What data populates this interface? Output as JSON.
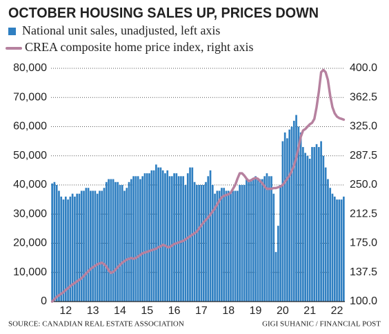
{
  "chart_data": {
    "type": "bar_line",
    "title": "OCTOBER HOUSING SALES UP,  PRICES DOWN",
    "source": "SOURCE: CANADIAN REAL ESTATE ASSOCIATION",
    "credit": "GIGI SUHANIC / FINANCIAL POST",
    "categories": [
      null,
      null,
      null,
      null,
      null,
      null,
      "12",
      null,
      null,
      null,
      null,
      null,
      null,
      null,
      null,
      null,
      null,
      null,
      "13",
      null,
      null,
      null,
      null,
      null,
      null,
      null,
      null,
      null,
      null,
      null,
      "14",
      null,
      null,
      null,
      null,
      null,
      null,
      null,
      null,
      null,
      null,
      null,
      "15",
      null,
      null,
      null,
      null,
      null,
      null,
      null,
      null,
      null,
      null,
      null,
      "16",
      null,
      null,
      null,
      null,
      null,
      null,
      null,
      null,
      null,
      null,
      null,
      "17",
      null,
      null,
      null,
      null,
      null,
      null,
      null,
      null,
      null,
      null,
      null,
      "18",
      null,
      null,
      null,
      null,
      null,
      null,
      null,
      null,
      null,
      null,
      null,
      "19",
      null,
      null,
      null,
      null,
      null,
      null,
      null,
      null,
      null,
      null,
      null,
      "20",
      null,
      null,
      null,
      null,
      null,
      null,
      null,
      null,
      null,
      null,
      null,
      "21",
      null,
      null,
      null,
      null,
      null,
      null,
      null,
      null,
      null,
      null,
      null,
      "22",
      null,
      null,
      null
    ],
    "series": [
      {
        "name": "National unit sales, unadjusted, left axis",
        "color": "#2f7fc1",
        "values": [
          40500,
          41000,
          40000,
          38000,
          36000,
          35000,
          36000,
          35000,
          36000,
          37000,
          36000,
          37000,
          37000,
          38000,
          38000,
          39000,
          39000,
          38000,
          38000,
          38000,
          37000,
          38000,
          38000,
          39000,
          41000,
          42000,
          42000,
          42000,
          41000,
          41000,
          40000,
          40000,
          38000,
          39000,
          41000,
          42000,
          43000,
          43000,
          43000,
          42000,
          43000,
          44000,
          44000,
          44000,
          45000,
          45000,
          47000,
          46000,
          46000,
          45000,
          44000,
          45000,
          43000,
          43000,
          44000,
          44000,
          43000,
          43000,
          43000,
          40000,
          44000,
          46000,
          46000,
          41000,
          40000,
          40000,
          40000,
          40000,
          41000,
          43000,
          45000,
          40000,
          37000,
          38000,
          38000,
          39000,
          39000,
          38000,
          38000,
          37000,
          38000,
          38000,
          38000,
          40000,
          40000,
          40000,
          42000,
          41000,
          42000,
          42000,
          43000,
          42000,
          42000,
          42000,
          43000,
          44000,
          43000,
          43000,
          37000,
          17000,
          26000,
          40000,
          55000,
          58000,
          56000,
          59000,
          60000,
          62000,
          64000,
          60000,
          58000,
          53000,
          51000,
          50000,
          49000,
          53000,
          53000,
          54000,
          53000,
          55000,
          50000,
          46000,
          42000,
          39000,
          37000,
          36000,
          35000,
          35000,
          35000,
          36000
        ]
      },
      {
        "name": "CREA composite home price index, right axis",
        "color": "#b6819f",
        "axis": "y2",
        "values": [
          100,
          103,
          106,
          108,
          110,
          112,
          115,
          117,
          120,
          122,
          124,
          126,
          128,
          130,
          133,
          136,
          139,
          142,
          144,
          146,
          148,
          149,
          150,
          148,
          145,
          140,
          137,
          138,
          141,
          144,
          147,
          150,
          152,
          154,
          155,
          156,
          155,
          156,
          158,
          160,
          162,
          163,
          164,
          165,
          166,
          167,
          168,
          170,
          171,
          173,
          172,
          170,
          170,
          172,
          174,
          175,
          176,
          177,
          178,
          180,
          182,
          184,
          186,
          188,
          190,
          194,
          198,
          202,
          205,
          208,
          212,
          216,
          220,
          225,
          230,
          234,
          236,
          237,
          238,
          240,
          245,
          250,
          258,
          265,
          265,
          262,
          258,
          255,
          256,
          258,
          259,
          258,
          255,
          252,
          248,
          245,
          245,
          245,
          246,
          246,
          247,
          248,
          250,
          254,
          258,
          262,
          268,
          275,
          285,
          298,
          312,
          320,
          322,
          325,
          328,
          330,
          335,
          350,
          370,
          395,
          398,
          395,
          385,
          365,
          350,
          342,
          338,
          336,
          335,
          334
        ]
      }
    ],
    "ylim": [
      0,
      80000
    ],
    "yticks": [
      0,
      {
        "value": 10000,
        "label": "10,000"
      },
      {
        "value": 20000,
        "label": "20,000"
      },
      {
        "value": 30000,
        "label": "30,000"
      },
      {
        "value": 40000,
        "label": "40,000"
      },
      {
        "value": 50000,
        "label": "50,000"
      },
      {
        "value": 60000,
        "label": "60,000"
      },
      {
        "value": 70000,
        "label": "70,000"
      },
      {
        "value": 80000,
        "label": "80,000"
      }
    ],
    "y2lim": [
      100,
      400
    ],
    "y2ticks": [
      {
        "value": 100,
        "label": "100.0"
      },
      137.5,
      {
        "value": 175,
        "label": "175.0"
      },
      212.5,
      {
        "value": 250,
        "label": "250.0"
      },
      287.5,
      {
        "value": 325,
        "label": "325.0"
      },
      362.5,
      {
        "value": 400,
        "label": "400.0"
      }
    ],
    "grid": true
  }
}
